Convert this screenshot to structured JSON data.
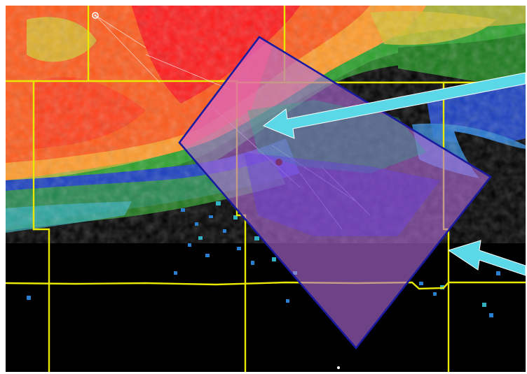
{
  "colors": {
    "background": "#000000",
    "reflectivity_scale": [
      "#ff1a1a",
      "#ff5a1a",
      "#ff9a2a",
      "#d8c030",
      "#a8b030",
      "#2aa02a",
      "#1a7a1a",
      "#1a40c0",
      "#2a80d0",
      "#30b0c0",
      "#7a2ad0"
    ],
    "county_lines": "#e8e800",
    "warning_polygon_fill": "#b06ad8",
    "warning_polygon_outline": "#1a1aa0",
    "arrows": "#5ad8e8",
    "range_rings": "#f0f0f0"
  },
  "icons": [
    "radar-site-icon",
    "arrow-icon"
  ]
}
